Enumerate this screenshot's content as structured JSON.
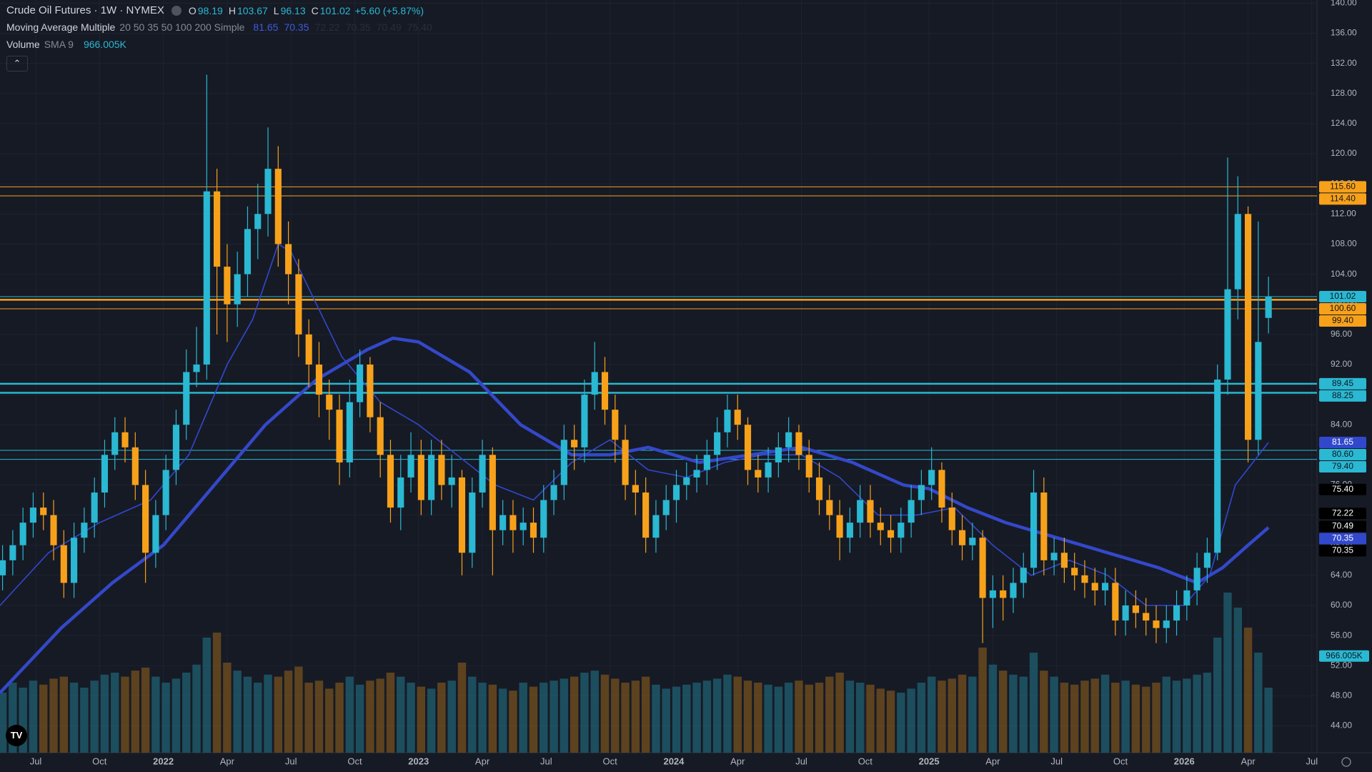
{
  "chart_data": {
    "type": "candlestick",
    "title": "Crude Oil Futures · 1W · NYMEX",
    "ohlc": [
      {
        "key": "O",
        "value": 98.19
      },
      {
        "key": "H",
        "value": 103.67
      },
      {
        "key": "L",
        "value": 96.13
      },
      {
        "key": "C",
        "value": 101.02
      }
    ],
    "change": "+5.60 (+5.87%)",
    "indicator": {
      "name": "Moving Average Multiple",
      "params": "20 50 35 50 100 200 Simple",
      "values": [
        81.65,
        70.35,
        72.22,
        70.35,
        70.49,
        {
          "value": 75.4,
          "label": "75.40"
        }
      ],
      "value_colors": [
        "#3f5bd9",
        "#3f5bd9",
        "#2a2e39",
        "#2a2e39",
        "#2a2e39",
        "#2a2e39"
      ]
    },
    "volume_indicator": {
      "name": "Volume",
      "params": "SMA 9",
      "value": {
        "value": 966.005,
        "label": "966.005K"
      }
    },
    "background": "#161a25",
    "grid": true,
    "grid_color": "#1f2330",
    "up_color": "#2ab8d2",
    "down_color": "#f7a11a",
    "volume_up_color": "#1d5868",
    "volume_down_color": "#6a4a1f",
    "xlim": [
      2021.36,
      2026.52
    ],
    "xticks": [
      {
        "value": 2021.5,
        "label": "Jul"
      },
      {
        "value": 2021.75,
        "label": "Oct"
      },
      2022,
      {
        "value": 2022.25,
        "label": "Apr"
      },
      {
        "value": 2022.5,
        "label": "Jul"
      },
      {
        "value": 2022.75,
        "label": "Oct"
      },
      2023,
      {
        "value": 2023.25,
        "label": "Apr"
      },
      {
        "value": 2023.5,
        "label": "Jul"
      },
      {
        "value": 2023.75,
        "label": "Oct"
      },
      2024,
      {
        "value": 2024.25,
        "label": "Apr"
      },
      {
        "value": 2024.5,
        "label": "Jul"
      },
      {
        "value": 2024.75,
        "label": "Oct"
      },
      2025,
      {
        "value": 2025.25,
        "label": "Apr"
      },
      {
        "value": 2025.5,
        "label": "Jul"
      },
      {
        "value": 2025.75,
        "label": "Oct"
      },
      2026,
      {
        "value": 2026.25,
        "label": "Apr"
      },
      {
        "value": 2026.5,
        "label": "Jul"
      }
    ],
    "ylim": [
      40.44,
      140.42
    ],
    "yticks": [
      {
        "value": 44,
        "label": "44.00"
      },
      {
        "value": 48,
        "label": "48.00"
      },
      {
        "value": 52,
        "label": "52.00"
      },
      {
        "value": 56,
        "label": "56.00"
      },
      {
        "value": 60,
        "label": "60.00"
      },
      {
        "value": 64,
        "label": "64.00"
      },
      {
        "value": 68,
        "label": "68.00"
      },
      {
        "value": 72,
        "label": "72.00"
      },
      {
        "value": 76,
        "label": "76.00"
      },
      {
        "value": 80,
        "label": "80.00"
      },
      {
        "value": 84,
        "label": "84.00"
      },
      {
        "value": 88,
        "label": "88.00"
      },
      {
        "value": 92,
        "label": "92.00"
      },
      {
        "value": 96,
        "label": "96.00"
      },
      {
        "value": 100,
        "label": "100.00"
      },
      {
        "value": 104,
        "label": "104.00"
      },
      {
        "value": 108,
        "label": "108.00"
      },
      {
        "value": 112,
        "label": "112.00"
      },
      {
        "value": 116,
        "label": "116.00"
      },
      {
        "value": 120,
        "label": "120.00"
      },
      {
        "value": 124,
        "label": "124.00"
      },
      {
        "value": 128,
        "label": "128.00"
      },
      {
        "value": 132,
        "label": "132.00"
      },
      {
        "value": 136,
        "label": "136.00"
      },
      {
        "value": 140,
        "label": "140.00"
      }
    ],
    "volume_lim": [
      0,
      2000
    ],
    "x": [
      2021.37,
      2021.41,
      2021.45,
      2021.49,
      2021.53,
      2021.57,
      2021.61,
      2021.65,
      2021.69,
      2021.73,
      2021.77,
      2021.81,
      2021.85,
      2021.89,
      2021.93,
      2021.97,
      2022.01,
      2022.05,
      2022.09,
      2022.13,
      2022.17,
      2022.21,
      2022.25,
      2022.29,
      2022.33,
      2022.37,
      2022.41,
      2022.45,
      2022.49,
      2022.53,
      2022.57,
      2022.61,
      2022.65,
      2022.69,
      2022.73,
      2022.77,
      2022.81,
      2022.85,
      2022.89,
      2022.93,
      2022.97,
      2023.01,
      2023.05,
      2023.09,
      2023.13,
      2023.17,
      2023.21,
      2023.25,
      2023.29,
      2023.33,
      2023.37,
      2023.41,
      2023.45,
      2023.49,
      2023.53,
      2023.57,
      2023.61,
      2023.65,
      2023.69,
      2023.73,
      2023.77,
      2023.81,
      2023.85,
      2023.89,
      2023.93,
      2023.97,
      2024.01,
      2024.05,
      2024.09,
      2024.13,
      2024.17,
      2024.21,
      2024.25,
      2024.29,
      2024.33,
      2024.37,
      2024.41,
      2024.45,
      2024.49,
      2024.53,
      2024.57,
      2024.61,
      2024.65,
      2024.69,
      2024.73,
      2024.77,
      2024.81,
      2024.85,
      2024.89,
      2024.93,
      2024.97,
      2025.01,
      2025.05,
      2025.09,
      2025.13,
      2025.17,
      2025.21,
      2025.25,
      2025.29,
      2025.33,
      2025.37,
      2025.41,
      2025.45,
      2025.49,
      2025.53,
      2025.57,
      2025.61,
      2025.65,
      2025.69,
      2025.73,
      2025.77,
      2025.81,
      2025.85,
      2025.89,
      2025.93,
      2025.97,
      2026.01,
      2026.05,
      2026.09,
      2026.13,
      2026.17,
      2026.21,
      2026.25,
      2026.29,
      2026.33
    ],
    "open": [
      64,
      66,
      68,
      71,
      73,
      72,
      68,
      63,
      69,
      71,
      75,
      80,
      83,
      81,
      76,
      67,
      72,
      78,
      84,
      91,
      92,
      115,
      105,
      100,
      104,
      110,
      112,
      118,
      108,
      104,
      96,
      92,
      88,
      86,
      79,
      87,
      92,
      85,
      80,
      73,
      77,
      80,
      74,
      80,
      76,
      77,
      67,
      75,
      80,
      70,
      72,
      70,
      71,
      69,
      74,
      76,
      82,
      81,
      88,
      91,
      86,
      82,
      76,
      75,
      69,
      72,
      74,
      76,
      77,
      78,
      80,
      83,
      86,
      84,
      78,
      77,
      79,
      81,
      83,
      80,
      77,
      74,
      72,
      69,
      71,
      74,
      71,
      70,
      69,
      71,
      74,
      76,
      78,
      73,
      70,
      68,
      69,
      61,
      62,
      61,
      63,
      65,
      75,
      66,
      67,
      65,
      64,
      63,
      62,
      63,
      58,
      60,
      59,
      58,
      57,
      58,
      60,
      62,
      65,
      67,
      90,
      102,
      112,
      82,
      98.19
    ],
    "high": [
      68,
      70,
      73,
      75,
      75,
      74,
      70,
      71,
      73,
      77,
      82,
      85,
      85,
      83,
      78,
      74,
      80,
      86,
      94,
      97,
      130.5,
      118,
      108,
      107,
      113,
      116,
      123.5,
      121,
      111,
      106,
      98,
      95,
      90,
      88,
      90,
      94,
      93,
      87,
      82,
      80,
      83,
      82,
      82,
      82,
      80,
      78,
      77,
      82,
      81,
      74,
      74,
      73,
      73,
      76,
      78,
      84,
      84,
      90,
      95,
      93,
      88,
      84,
      78,
      77,
      74,
      76,
      78,
      79,
      80,
      82,
      85,
      88,
      88,
      85,
      80,
      81,
      83,
      85,
      84,
      82,
      79,
      76,
      74,
      73,
      76,
      76,
      73,
      72,
      73,
      76,
      78,
      81,
      79,
      75,
      72,
      71,
      70,
      64,
      64,
      65,
      67,
      78,
      77,
      69,
      69,
      67,
      66,
      65,
      65,
      65,
      62,
      62,
      61,
      60,
      60,
      62,
      64,
      67,
      69,
      92,
      119.5,
      117,
      113,
      111,
      103.67
    ],
    "low": [
      62,
      64,
      66,
      69,
      70,
      66,
      61,
      61,
      67,
      69,
      73,
      78,
      79,
      74,
      63,
      65,
      70,
      76,
      82,
      89,
      90,
      96,
      95,
      97,
      101,
      106,
      109,
      105,
      100,
      93,
      89,
      85,
      82,
      76,
      77,
      85,
      83,
      77,
      71,
      70,
      75,
      72,
      72,
      74,
      73,
      64,
      65,
      73,
      64,
      68,
      67,
      68,
      67,
      67,
      72,
      74,
      78,
      79,
      86,
      84,
      79,
      74,
      72,
      67,
      67,
      70,
      71,
      74,
      75,
      76,
      78,
      81,
      82,
      76,
      75,
      75,
      77,
      79,
      78,
      75,
      72,
      70,
      66,
      67,
      69,
      69,
      68,
      67,
      67,
      69,
      72,
      74,
      71,
      68,
      66,
      66,
      55,
      57,
      58,
      59,
      61,
      64,
      64,
      64,
      63,
      62,
      61,
      60,
      60,
      56,
      56,
      57,
      56,
      55,
      55,
      56,
      58,
      60,
      63,
      66,
      88,
      98,
      79,
      80,
      96.13
    ],
    "close": [
      66,
      68,
      71,
      73,
      72,
      68,
      63,
      69,
      71,
      75,
      80,
      83,
      81,
      76,
      67,
      72,
      78,
      84,
      91,
      92,
      115,
      105,
      100,
      104,
      110,
      112,
      118,
      108,
      104,
      96,
      92,
      88,
      86,
      79,
      87,
      92,
      85,
      80,
      73,
      77,
      80,
      74,
      80,
      76,
      77,
      67,
      75,
      80,
      70,
      72,
      70,
      71,
      69,
      74,
      76,
      82,
      81,
      88,
      91,
      86,
      82,
      76,
      75,
      69,
      72,
      74,
      76,
      77,
      78,
      80,
      83,
      86,
      84,
      78,
      77,
      79,
      81,
      83,
      80,
      77,
      74,
      72,
      69,
      71,
      74,
      71,
      70,
      69,
      71,
      74,
      76,
      78,
      73,
      70,
      68,
      69,
      61,
      62,
      61,
      63,
      65,
      75,
      66,
      67,
      65,
      64,
      63,
      62,
      63,
      58,
      60,
      59,
      58,
      57,
      58,
      60,
      62,
      65,
      67,
      90,
      102,
      112,
      82,
      95,
      101.02
    ],
    "volume": [
      600,
      700,
      650,
      720,
      680,
      740,
      760,
      700,
      650,
      720,
      780,
      800,
      760,
      820,
      850,
      760,
      700,
      740,
      800,
      880,
      1150,
      1200,
      900,
      820,
      760,
      700,
      780,
      760,
      820,
      860,
      700,
      720,
      640,
      700,
      760,
      680,
      720,
      740,
      800,
      760,
      700,
      660,
      640,
      700,
      720,
      900,
      760,
      700,
      680,
      640,
      620,
      700,
      660,
      700,
      720,
      740,
      760,
      800,
      820,
      780,
      740,
      700,
      720,
      760,
      680,
      640,
      660,
      680,
      700,
      720,
      740,
      780,
      760,
      720,
      700,
      680,
      660,
      700,
      720,
      680,
      700,
      760,
      800,
      720,
      700,
      680,
      640,
      620,
      600,
      640,
      700,
      760,
      720,
      740,
      780,
      760,
      1050,
      880,
      820,
      780,
      760,
      1000,
      820,
      760,
      700,
      680,
      720,
      740,
      780,
      700,
      720,
      680,
      660,
      700,
      760,
      720,
      740,
      780,
      800,
      1150,
      1600,
      1450,
      1250,
      1000,
      650
    ],
    "ma_lines": [
      {
        "color": "#3248cc",
        "weight": "normal",
        "x": [
          2021.36,
          2021.55,
          2021.75,
          2021.95,
          2022.1,
          2022.25,
          2022.35,
          2022.45,
          2022.5,
          2022.6,
          2022.7,
          2022.85,
          2023.0,
          2023.15,
          2023.3,
          2023.45,
          2023.6,
          2023.75,
          2023.9,
          2024.05,
          2024.2,
          2024.35,
          2024.5,
          2024.65,
          2024.8,
          2024.95,
          2025.1,
          2025.25,
          2025.4,
          2025.55,
          2025.7,
          2025.85,
          2026.0,
          2026.1,
          2026.2,
          2026.33
        ],
        "values": [
          60,
          67,
          71,
          74,
          80,
          92,
          98,
          108,
          107,
          100,
          93,
          87,
          84,
          80,
          76,
          74,
          79,
          82,
          78,
          77,
          79,
          80,
          80,
          77,
          72,
          72,
          73,
          68,
          64,
          66,
          64,
          60,
          60,
          64,
          76,
          81.65
        ]
      },
      {
        "color": "#3448c9",
        "weight": "bold",
        "x": [
          2021.36,
          2021.6,
          2021.8,
          2022.0,
          2022.2,
          2022.4,
          2022.6,
          2022.8,
          2022.9,
          2023.0,
          2023.2,
          2023.4,
          2023.6,
          2023.75,
          2023.9,
          2024.1,
          2024.3,
          2024.5,
          2024.7,
          2024.9,
          2025.0,
          2025.15,
          2025.3,
          2025.5,
          2025.7,
          2025.9,
          2026.05,
          2026.15,
          2026.25,
          2026.33
        ],
        "values": [
          48.4,
          57,
          63,
          68,
          76,
          84,
          90,
          94,
          95.5,
          95,
          91,
          84,
          80,
          80,
          81,
          79,
          80,
          81,
          79,
          76,
          75.5,
          73,
          71,
          69,
          67,
          65,
          63,
          65,
          68,
          70.35
        ]
      }
    ],
    "markers": [
      {
        "value": 115.6,
        "label": "115.60",
        "color": "#f7a11a",
        "text_color": "#131722",
        "line": "thin"
      },
      {
        "value": 114.4,
        "label": "114.40",
        "color": "#f7a11a",
        "text_color": "#131722",
        "line": "thin"
      },
      {
        "value": 101.02,
        "label": "101.02",
        "color": "#2ab8d2",
        "text_color": "#131722",
        "line": "thin"
      },
      {
        "value": 100.6,
        "label": "100.60",
        "color": "#f7a11a",
        "text_color": "#131722",
        "line": "thick"
      },
      {
        "value": 99.4,
        "label": "99.40",
        "color": "#f7a11a",
        "text_color": "#131722",
        "line": "thin"
      },
      {
        "value": 89.45,
        "label": "89.45",
        "color": "#2ab8d2",
        "text_color": "#131722",
        "line": "thick"
      },
      {
        "value": 88.25,
        "label": "88.25",
        "color": "#2ab8d2",
        "text_color": "#131722",
        "line": "thick"
      },
      {
        "value": 81.65,
        "label": "81.65",
        "color": "#3248cc",
        "text_color": "#ffffff",
        "line": "none"
      },
      {
        "value": 80.6,
        "label": "80.60",
        "color": "#2ab8d2",
        "text_color": "#131722",
        "line": "thin"
      },
      {
        "value": 79.4,
        "label": "79.40",
        "color": "#2ab8d2",
        "text_color": "#131722",
        "line": "thin"
      },
      {
        "value": 75.4,
        "label": "75.40",
        "color": "#000000",
        "text_color": "#ffffff",
        "line": "none"
      },
      {
        "value": 72.22,
        "label": "72.22",
        "color": "#000000",
        "text_color": "#ffffff",
        "line": "none"
      },
      {
        "value": 70.49,
        "label": "70.49",
        "color": "#000000",
        "text_color": "#ffffff",
        "line": "none"
      },
      {
        "value": 70.35,
        "label": "70.35",
        "color": "#3248cc",
        "text_color": "#ffffff",
        "line": "none"
      },
      {
        "value": 70.35,
        "label": "70.35",
        "color": "#000000",
        "text_color": "#ffffff",
        "line": "none"
      }
    ]
  }
}
